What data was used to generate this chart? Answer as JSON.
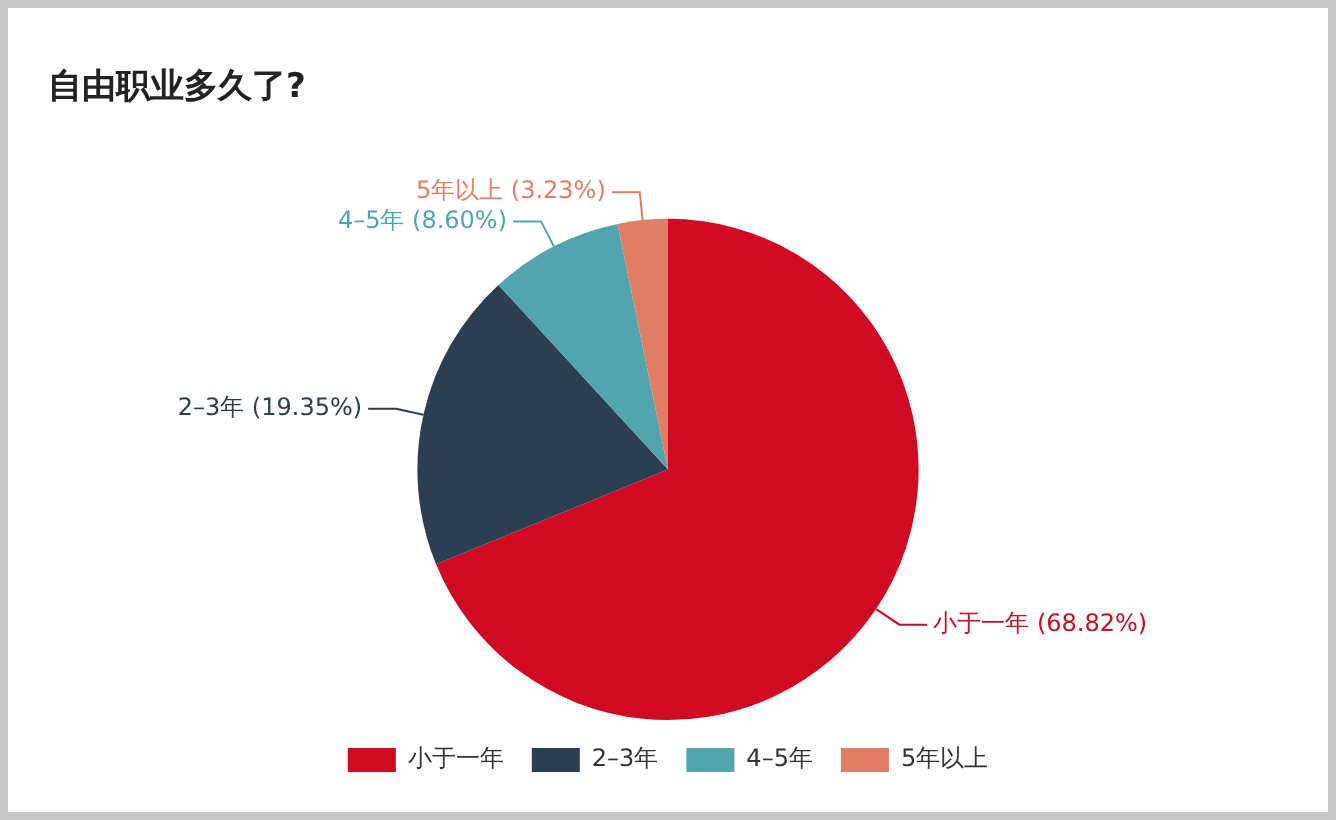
{
  "chart_data": {
    "type": "pie",
    "title": "自由职业多久了?",
    "categories": [
      "小于一年",
      "2–3年",
      "4–5年",
      "5年以上"
    ],
    "values": [
      68.82,
      19.35,
      8.6,
      3.23
    ],
    "colors": [
      "#cf0a22",
      "#2c3f52",
      "#52a5ae",
      "#e27d65"
    ],
    "value_labels": [
      "小于一年 (68.82%)",
      "2–3年 (19.35%)",
      "4–5年 (8.60%)",
      "5年以上 (3.23%)"
    ],
    "legend": "bottom"
  }
}
